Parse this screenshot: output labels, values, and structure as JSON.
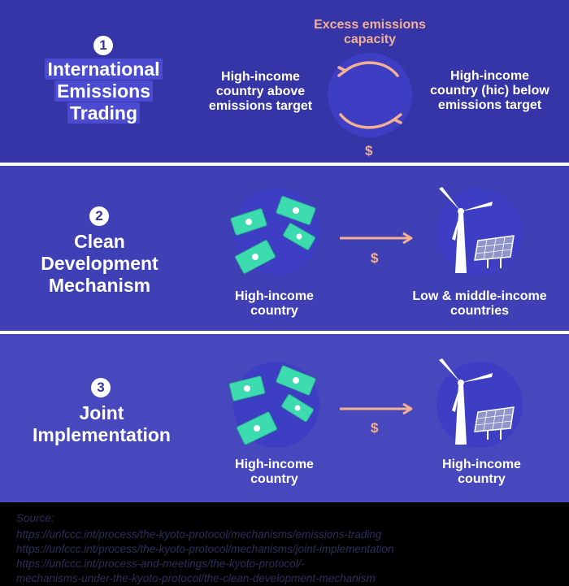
{
  "sections": [
    {
      "number": "1",
      "title_lines": [
        "International",
        "Emissions",
        "Trading"
      ],
      "top_label": "Excess emissions capacity",
      "top_label_lines": [
        "Excess emissions",
        "capacity"
      ],
      "left_label_lines": [
        "High-income",
        "country above",
        "emissions target"
      ],
      "right_label_lines": [
        "High-income",
        "country (hic) below",
        "emissions target"
      ],
      "dollar": "$"
    },
    {
      "number": "2",
      "title_lines": [
        "Clean",
        "Development",
        "Mechanism"
      ],
      "left_label_lines": [
        "High-income",
        "country"
      ],
      "right_label_lines": [
        "Low & middle-income",
        "countries"
      ],
      "dollar": "$"
    },
    {
      "number": "3",
      "title_lines": [
        "Joint",
        "Implementation"
      ],
      "left_label_lines": [
        "High-income",
        "country"
      ],
      "right_label_lines": [
        "High-income",
        "country"
      ],
      "dollar": "$"
    }
  ],
  "source": {
    "heading": "Source:",
    "lines": [
      "https://unfccc.int/process/the-kyoto-protocol/mechanisms/emissions-trading",
      "https://unfccc.int/process/the-kyoto-protocol/mechanisms/joint-implementation",
      "https://unfccc.int/process-and-meetings/the-kyoto-protocol/-",
      "mechanisms-under-the-kyoto-protocol/the-clean-development-mechanism"
    ]
  },
  "colors": {
    "panel1": "#3535a8",
    "panel2": "#3f40b6",
    "panel3": "#4747be",
    "accent": "#f3b092",
    "money": "#3ddbb0"
  },
  "icons": [
    "exchange-arrows-icon",
    "money-bills-icon",
    "arrow-right-icon",
    "wind-turbine-icon",
    "solar-panel-icon"
  ]
}
